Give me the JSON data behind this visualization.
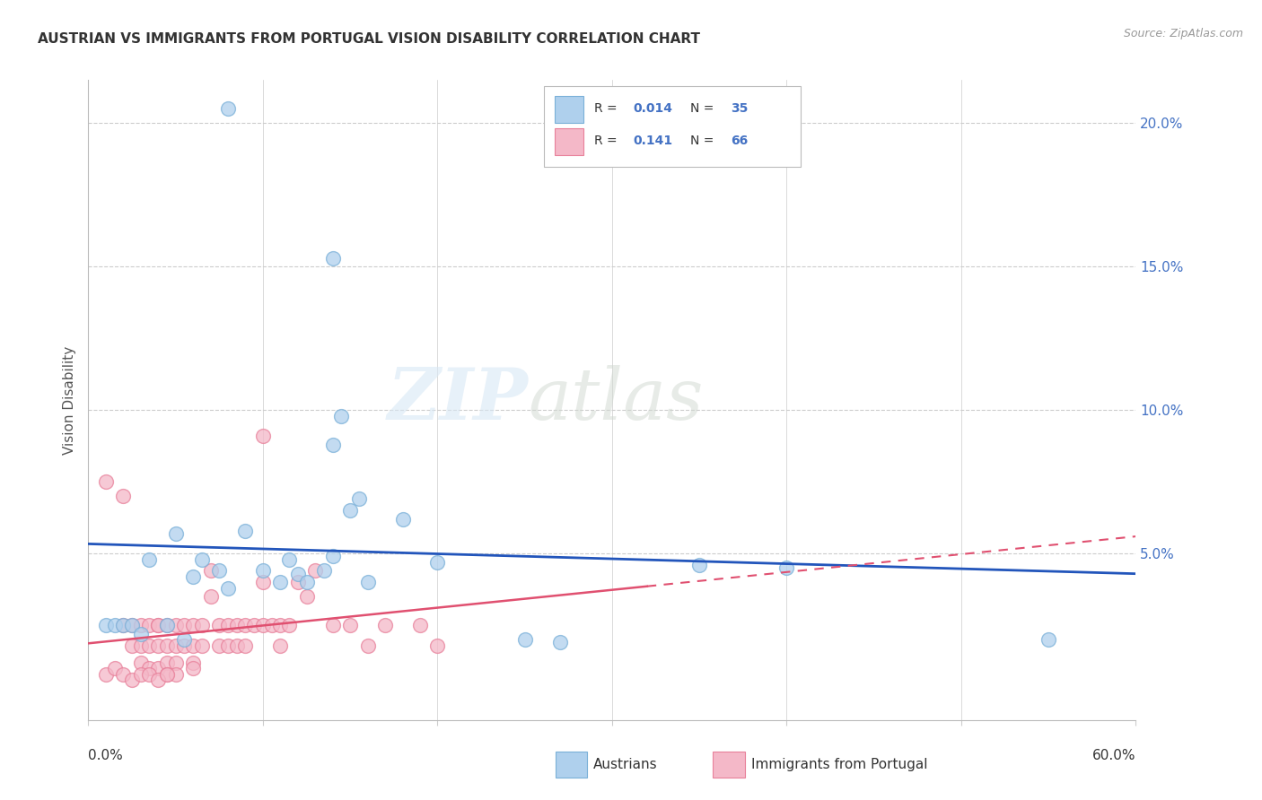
{
  "title": "AUSTRIAN VS IMMIGRANTS FROM PORTUGAL VISION DISABILITY CORRELATION CHART",
  "source": "Source: ZipAtlas.com",
  "ylabel": "Vision Disability",
  "xlim": [
    0.0,
    0.6
  ],
  "ylim": [
    -0.008,
    0.215
  ],
  "yticks": [
    0.05,
    0.1,
    0.15,
    0.2
  ],
  "ytick_labels": [
    "5.0%",
    "10.0%",
    "15.0%",
    "20.0%"
  ],
  "xticks": [
    0.0,
    0.1,
    0.2,
    0.3,
    0.4,
    0.5,
    0.6
  ],
  "color_austrians": "#afd0ed",
  "color_portugal": "#f4b8c8",
  "color_austrians_edge": "#7ab0d8",
  "color_portugal_edge": "#e8809a",
  "trendline_austrians": "#2255bb",
  "trendline_portugal": "#e05070",
  "watermark_zip": "ZIP",
  "watermark_atlas": "atlas",
  "austrians_x": [
    0.08,
    0.14,
    0.145,
    0.14,
    0.155,
    0.035,
    0.05,
    0.06,
    0.065,
    0.075,
    0.08,
    0.09,
    0.1,
    0.11,
    0.115,
    0.12,
    0.125,
    0.135,
    0.14,
    0.15,
    0.16,
    0.18,
    0.2,
    0.25,
    0.27,
    0.35,
    0.4,
    0.55,
    0.01,
    0.015,
    0.02,
    0.025,
    0.03,
    0.045,
    0.055
  ],
  "austrians_y": [
    0.205,
    0.153,
    0.098,
    0.088,
    0.069,
    0.048,
    0.057,
    0.042,
    0.048,
    0.044,
    0.038,
    0.058,
    0.044,
    0.04,
    0.048,
    0.043,
    0.04,
    0.044,
    0.049,
    0.065,
    0.04,
    0.062,
    0.047,
    0.02,
    0.019,
    0.046,
    0.045,
    0.02,
    0.025,
    0.025,
    0.025,
    0.025,
    0.022,
    0.025,
    0.02
  ],
  "portugal_x": [
    0.01,
    0.02,
    0.02,
    0.025,
    0.025,
    0.03,
    0.03,
    0.03,
    0.035,
    0.035,
    0.035,
    0.04,
    0.04,
    0.04,
    0.04,
    0.045,
    0.045,
    0.045,
    0.045,
    0.05,
    0.05,
    0.05,
    0.05,
    0.055,
    0.055,
    0.06,
    0.06,
    0.06,
    0.065,
    0.065,
    0.07,
    0.07,
    0.075,
    0.075,
    0.08,
    0.08,
    0.085,
    0.085,
    0.09,
    0.09,
    0.095,
    0.1,
    0.1,
    0.1,
    0.105,
    0.11,
    0.11,
    0.115,
    0.12,
    0.125,
    0.13,
    0.14,
    0.15,
    0.16,
    0.17,
    0.19,
    0.2,
    0.01,
    0.015,
    0.02,
    0.025,
    0.03,
    0.035,
    0.04,
    0.045,
    0.06
  ],
  "portugal_y": [
    0.075,
    0.07,
    0.025,
    0.025,
    0.018,
    0.025,
    0.018,
    0.012,
    0.025,
    0.018,
    0.01,
    0.025,
    0.025,
    0.018,
    0.01,
    0.025,
    0.018,
    0.012,
    0.008,
    0.025,
    0.018,
    0.012,
    0.008,
    0.025,
    0.018,
    0.025,
    0.018,
    0.012,
    0.025,
    0.018,
    0.044,
    0.035,
    0.025,
    0.018,
    0.025,
    0.018,
    0.025,
    0.018,
    0.025,
    0.018,
    0.025,
    0.091,
    0.04,
    0.025,
    0.025,
    0.025,
    0.018,
    0.025,
    0.04,
    0.035,
    0.044,
    0.025,
    0.025,
    0.018,
    0.025,
    0.025,
    0.018,
    0.008,
    0.01,
    0.008,
    0.006,
    0.008,
    0.008,
    0.006,
    0.008,
    0.01
  ]
}
